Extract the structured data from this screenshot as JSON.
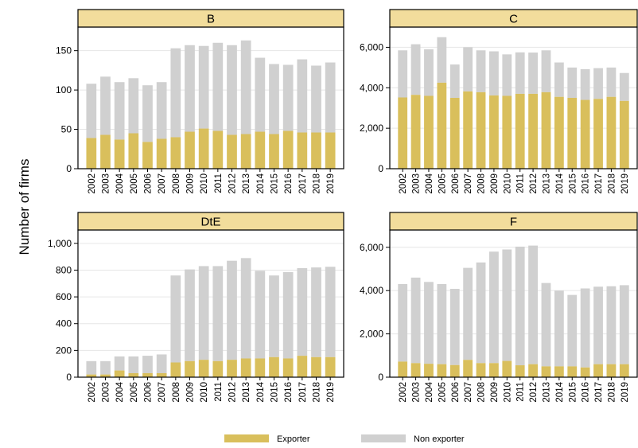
{
  "ylabel": "Number of firms",
  "legend": [
    {
      "label": "Exporter",
      "color": "#d9bf5c"
    },
    {
      "label": "Non exporter",
      "color": "#d0d0d0"
    }
  ],
  "colors": {
    "exporter": "#d9bf5c",
    "non_exporter": "#d0d0d0",
    "strip": "#f2dd9c",
    "grid": "#e6e6e6"
  },
  "chart_data": [
    {
      "type": "bar",
      "title": "B",
      "stacked": true,
      "categories": [
        "2002",
        "2003",
        "2004",
        "2005",
        "2006",
        "2007",
        "2008",
        "2009",
        "2010",
        "2011",
        "2012",
        "2013",
        "2014",
        "2015",
        "2016",
        "2017",
        "2018",
        "2019"
      ],
      "series": [
        {
          "name": "Exporter",
          "values": [
            39,
            43,
            37,
            45,
            34,
            38,
            40,
            47,
            51,
            48,
            43,
            44,
            47,
            44,
            48,
            46,
            46,
            46
          ]
        },
        {
          "name": "Non exporter",
          "values": [
            69,
            74,
            73,
            70,
            72,
            72,
            113,
            110,
            105,
            112,
            114,
            119,
            94,
            89,
            84,
            93,
            85,
            89
          ]
        }
      ],
      "ylim": [
        0,
        180
      ],
      "yticks": [
        0,
        50,
        100,
        150
      ],
      "ytick_labels": [
        "0",
        "50",
        "100",
        "150"
      ]
    },
    {
      "type": "bar",
      "title": "C",
      "stacked": true,
      "categories": [
        "2002",
        "2003",
        "2004",
        "2005",
        "2006",
        "2007",
        "2008",
        "2009",
        "2010",
        "2011",
        "2012",
        "2013",
        "2014",
        "2015",
        "2016",
        "2017",
        "2018",
        "2019"
      ],
      "series": [
        {
          "name": "Exporter",
          "values": [
            3520,
            3650,
            3600,
            4250,
            3500,
            3820,
            3780,
            3620,
            3600,
            3700,
            3700,
            3780,
            3550,
            3500,
            3400,
            3450,
            3550,
            3350
          ]
        },
        {
          "name": "Non exporter",
          "values": [
            2330,
            2500,
            2300,
            2250,
            1650,
            2180,
            2070,
            2180,
            2050,
            2050,
            2040,
            2070,
            1700,
            1500,
            1520,
            1520,
            1450,
            1380
          ]
        }
      ],
      "ylim": [
        0,
        7000
      ],
      "yticks": [
        0,
        2000,
        4000,
        6000
      ],
      "ytick_labels": [
        "0",
        "2,000",
        "4,000",
        "6,000"
      ]
    },
    {
      "type": "bar",
      "title": "DtE",
      "stacked": true,
      "categories": [
        "2002",
        "2003",
        "2004",
        "2005",
        "2006",
        "2007",
        "2008",
        "2009",
        "2010",
        "2011",
        "2012",
        "2013",
        "2014",
        "2015",
        "2016",
        "2017",
        "2018",
        "2019"
      ],
      "series": [
        {
          "name": "Exporter",
          "values": [
            20,
            20,
            50,
            30,
            30,
            30,
            110,
            120,
            130,
            120,
            130,
            140,
            140,
            150,
            140,
            160,
            150,
            150
          ]
        },
        {
          "name": "Non exporter",
          "values": [
            100,
            100,
            105,
            125,
            130,
            140,
            650,
            685,
            700,
            710,
            740,
            750,
            655,
            610,
            645,
            655,
            670,
            675
          ]
        }
      ],
      "ylim": [
        0,
        1100
      ],
      "yticks": [
        0,
        200,
        400,
        600,
        800,
        1000
      ],
      "ytick_labels": [
        "0",
        "200",
        "400",
        "600",
        "800",
        "1,000"
      ]
    },
    {
      "type": "bar",
      "title": "F",
      "stacked": true,
      "categories": [
        "2002",
        "2003",
        "2004",
        "2005",
        "2006",
        "2007",
        "2008",
        "2009",
        "2010",
        "2011",
        "2012",
        "2013",
        "2014",
        "2015",
        "2016",
        "2017",
        "2018",
        "2019"
      ],
      "series": [
        {
          "name": "Exporter",
          "values": [
            720,
            650,
            620,
            600,
            560,
            800,
            650,
            650,
            750,
            550,
            600,
            500,
            500,
            500,
            450,
            600,
            600,
            600
          ]
        },
        {
          "name": "Non exporter",
          "values": [
            3580,
            3950,
            3780,
            3700,
            3520,
            4250,
            4650,
            5150,
            5150,
            5480,
            5480,
            3850,
            3500,
            3300,
            3650,
            3580,
            3600,
            3650
          ]
        }
      ],
      "ylim": [
        0,
        6800
      ],
      "yticks": [
        0,
        2000,
        4000,
        6000
      ],
      "ytick_labels": [
        "0",
        "2,000",
        "4,000",
        "6,000"
      ]
    }
  ]
}
